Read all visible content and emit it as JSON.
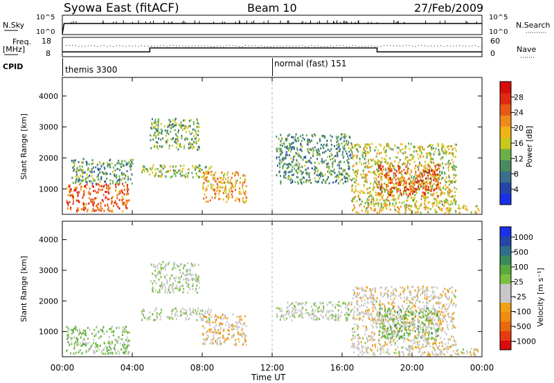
{
  "header": {
    "title": "Syowa East (fitACF)",
    "beam": "Beam 10",
    "date": "27/Feb/2009"
  },
  "summary": {
    "nsky_label": "N.Sky",
    "nsky_ticks": [
      "10^5",
      "10^0"
    ],
    "nsearch_label": "N.Search",
    "nsearch_ticks": [
      "10^5",
      "10^0"
    ],
    "freq_label": "Freq.",
    "freq_unit": "[MHz]",
    "freq_ticks": [
      "18",
      "8"
    ],
    "nave_label": "Nave",
    "nave_ticks": [
      "60",
      "0"
    ],
    "cpid_label": "CPID",
    "cpid_segments": [
      {
        "label": "themis 3300",
        "start_hour": 0
      },
      {
        "label": "normal (fast) 151",
        "start_hour": 12
      }
    ]
  },
  "time_ticks": [
    "00:00",
    "04:00",
    "08:00",
    "12:00",
    "16:00",
    "20:00",
    "00:00"
  ],
  "xlabel": "Time UT",
  "range_ylabel": "Slant Range [km]",
  "range_ticks": [
    "1000",
    "2000",
    "3000",
    "4000"
  ],
  "power_colorbar": {
    "label": "Power [dB]",
    "ticks": [
      "4",
      "8",
      "12",
      "16",
      "20",
      "24",
      "28"
    ]
  },
  "velocity_colorbar": {
    "label": "Velocity [m s⁻¹]",
    "ticks": [
      "1000",
      "500",
      "100",
      "25",
      "-25",
      "-100",
      "-500",
      "-1000"
    ]
  },
  "colors": {
    "power_scale": [
      "#1a2fe8",
      "#2546a8",
      "#3a6e8c",
      "#4a8a60",
      "#6cb048",
      "#c8c81e",
      "#f0b418",
      "#f08a1a",
      "#e85a14",
      "#e02a10",
      "#d80a0a"
    ],
    "velocity_scale": [
      "#1a2fe8",
      "#2546a8",
      "#2e6e8a",
      "#3a8a5a",
      "#5aaa40",
      "#7ac040",
      "#c8c8c8",
      "#c8c8c8",
      "#f0a014",
      "#f08a10",
      "#e86810",
      "#e83a10",
      "#d80a0a"
    ]
  },
  "chart_data": [
    {
      "type": "line",
      "title": "N.Sky / N.Search",
      "x_unit": "hour UT",
      "xlim": [
        0,
        24
      ],
      "series": [
        {
          "name": "N.Sky",
          "x": [
            0,
            0.1,
            0.3,
            24
          ],
          "y": [
            0,
            100000,
            100000,
            100000
          ]
        }
      ]
    },
    {
      "type": "line",
      "title": "Freq. / Nave",
      "xlim": [
        0,
        24
      ],
      "series": [
        {
          "name": "Freq.",
          "x": [
            0,
            5,
            5,
            18,
            18,
            24
          ],
          "y": [
            10.5,
            10.5,
            12.5,
            12.5,
            10.5,
            10.5
          ]
        },
        {
          "name": "Nave",
          "x": [
            0,
            6,
            12,
            18,
            24
          ],
          "y": [
            30,
            30,
            30,
            30,
            30
          ]
        }
      ],
      "ylim": [
        8,
        18
      ]
    },
    {
      "type": "heatmap",
      "title": "Power",
      "xlabel": "Time UT",
      "ylabel": "Slant Range [km]",
      "xlim": [
        0,
        24
      ],
      "ylim": [
        180,
        4600
      ],
      "colorbar": {
        "label": "Power [dB]",
        "range": [
          0,
          32
        ]
      },
      "regions": [
        {
          "t0": 0.2,
          "t1": 3.8,
          "r0": 300,
          "r1": 1200,
          "value": 26
        },
        {
          "t0": 0.5,
          "t1": 4.0,
          "r0": 1200,
          "r1": 2000,
          "value": 10
        },
        {
          "t0": 4.5,
          "t1": 8.5,
          "r0": 1400,
          "r1": 1800,
          "value": 14
        },
        {
          "t0": 5.0,
          "t1": 7.8,
          "r0": 2300,
          "r1": 3300,
          "value": 12
        },
        {
          "t0": 8.0,
          "t1": 10.5,
          "r0": 600,
          "r1": 1600,
          "value": 20
        },
        {
          "t0": 12.2,
          "t1": 16.5,
          "r0": 1200,
          "r1": 2800,
          "value": 10
        },
        {
          "t0": 16.5,
          "t1": 22.5,
          "r0": 500,
          "r1": 2500,
          "value": 16
        },
        {
          "t0": 18.0,
          "t1": 21.5,
          "r0": 800,
          "r1": 1800,
          "value": 26
        },
        {
          "t0": 16.5,
          "t1": 23.8,
          "r0": 250,
          "r1": 500,
          "value": 18
        }
      ]
    },
    {
      "type": "heatmap",
      "title": "Velocity",
      "xlabel": "Time UT",
      "ylabel": "Slant Range [km]",
      "xlim": [
        0,
        24
      ],
      "ylim": [
        180,
        4600
      ],
      "colorbar": {
        "label": "Velocity [m s⁻¹]",
        "range": [
          -1000,
          1000
        ]
      },
      "regions": [
        {
          "t0": 0.2,
          "t1": 3.8,
          "r0": 300,
          "r1": 1200,
          "value": 150
        },
        {
          "t0": 4.5,
          "t1": 8.5,
          "r0": 1400,
          "r1": 1800,
          "value": 0
        },
        {
          "t0": 5.0,
          "t1": 7.8,
          "r0": 2300,
          "r1": 3300,
          "value": 0
        },
        {
          "t0": 8.0,
          "t1": 10.5,
          "r0": 600,
          "r1": 1600,
          "value": -200
        },
        {
          "t0": 12.2,
          "t1": 16.5,
          "r0": 1400,
          "r1": 2000,
          "value": 0
        },
        {
          "t0": 16.5,
          "t1": 22.5,
          "r0": 500,
          "r1": 2500,
          "value": -150
        },
        {
          "t0": 18.0,
          "t1": 21.5,
          "r0": 800,
          "r1": 1800,
          "value": 200
        },
        {
          "t0": 16.5,
          "t1": 23.8,
          "r0": 250,
          "r1": 500,
          "value": -120
        }
      ]
    }
  ]
}
